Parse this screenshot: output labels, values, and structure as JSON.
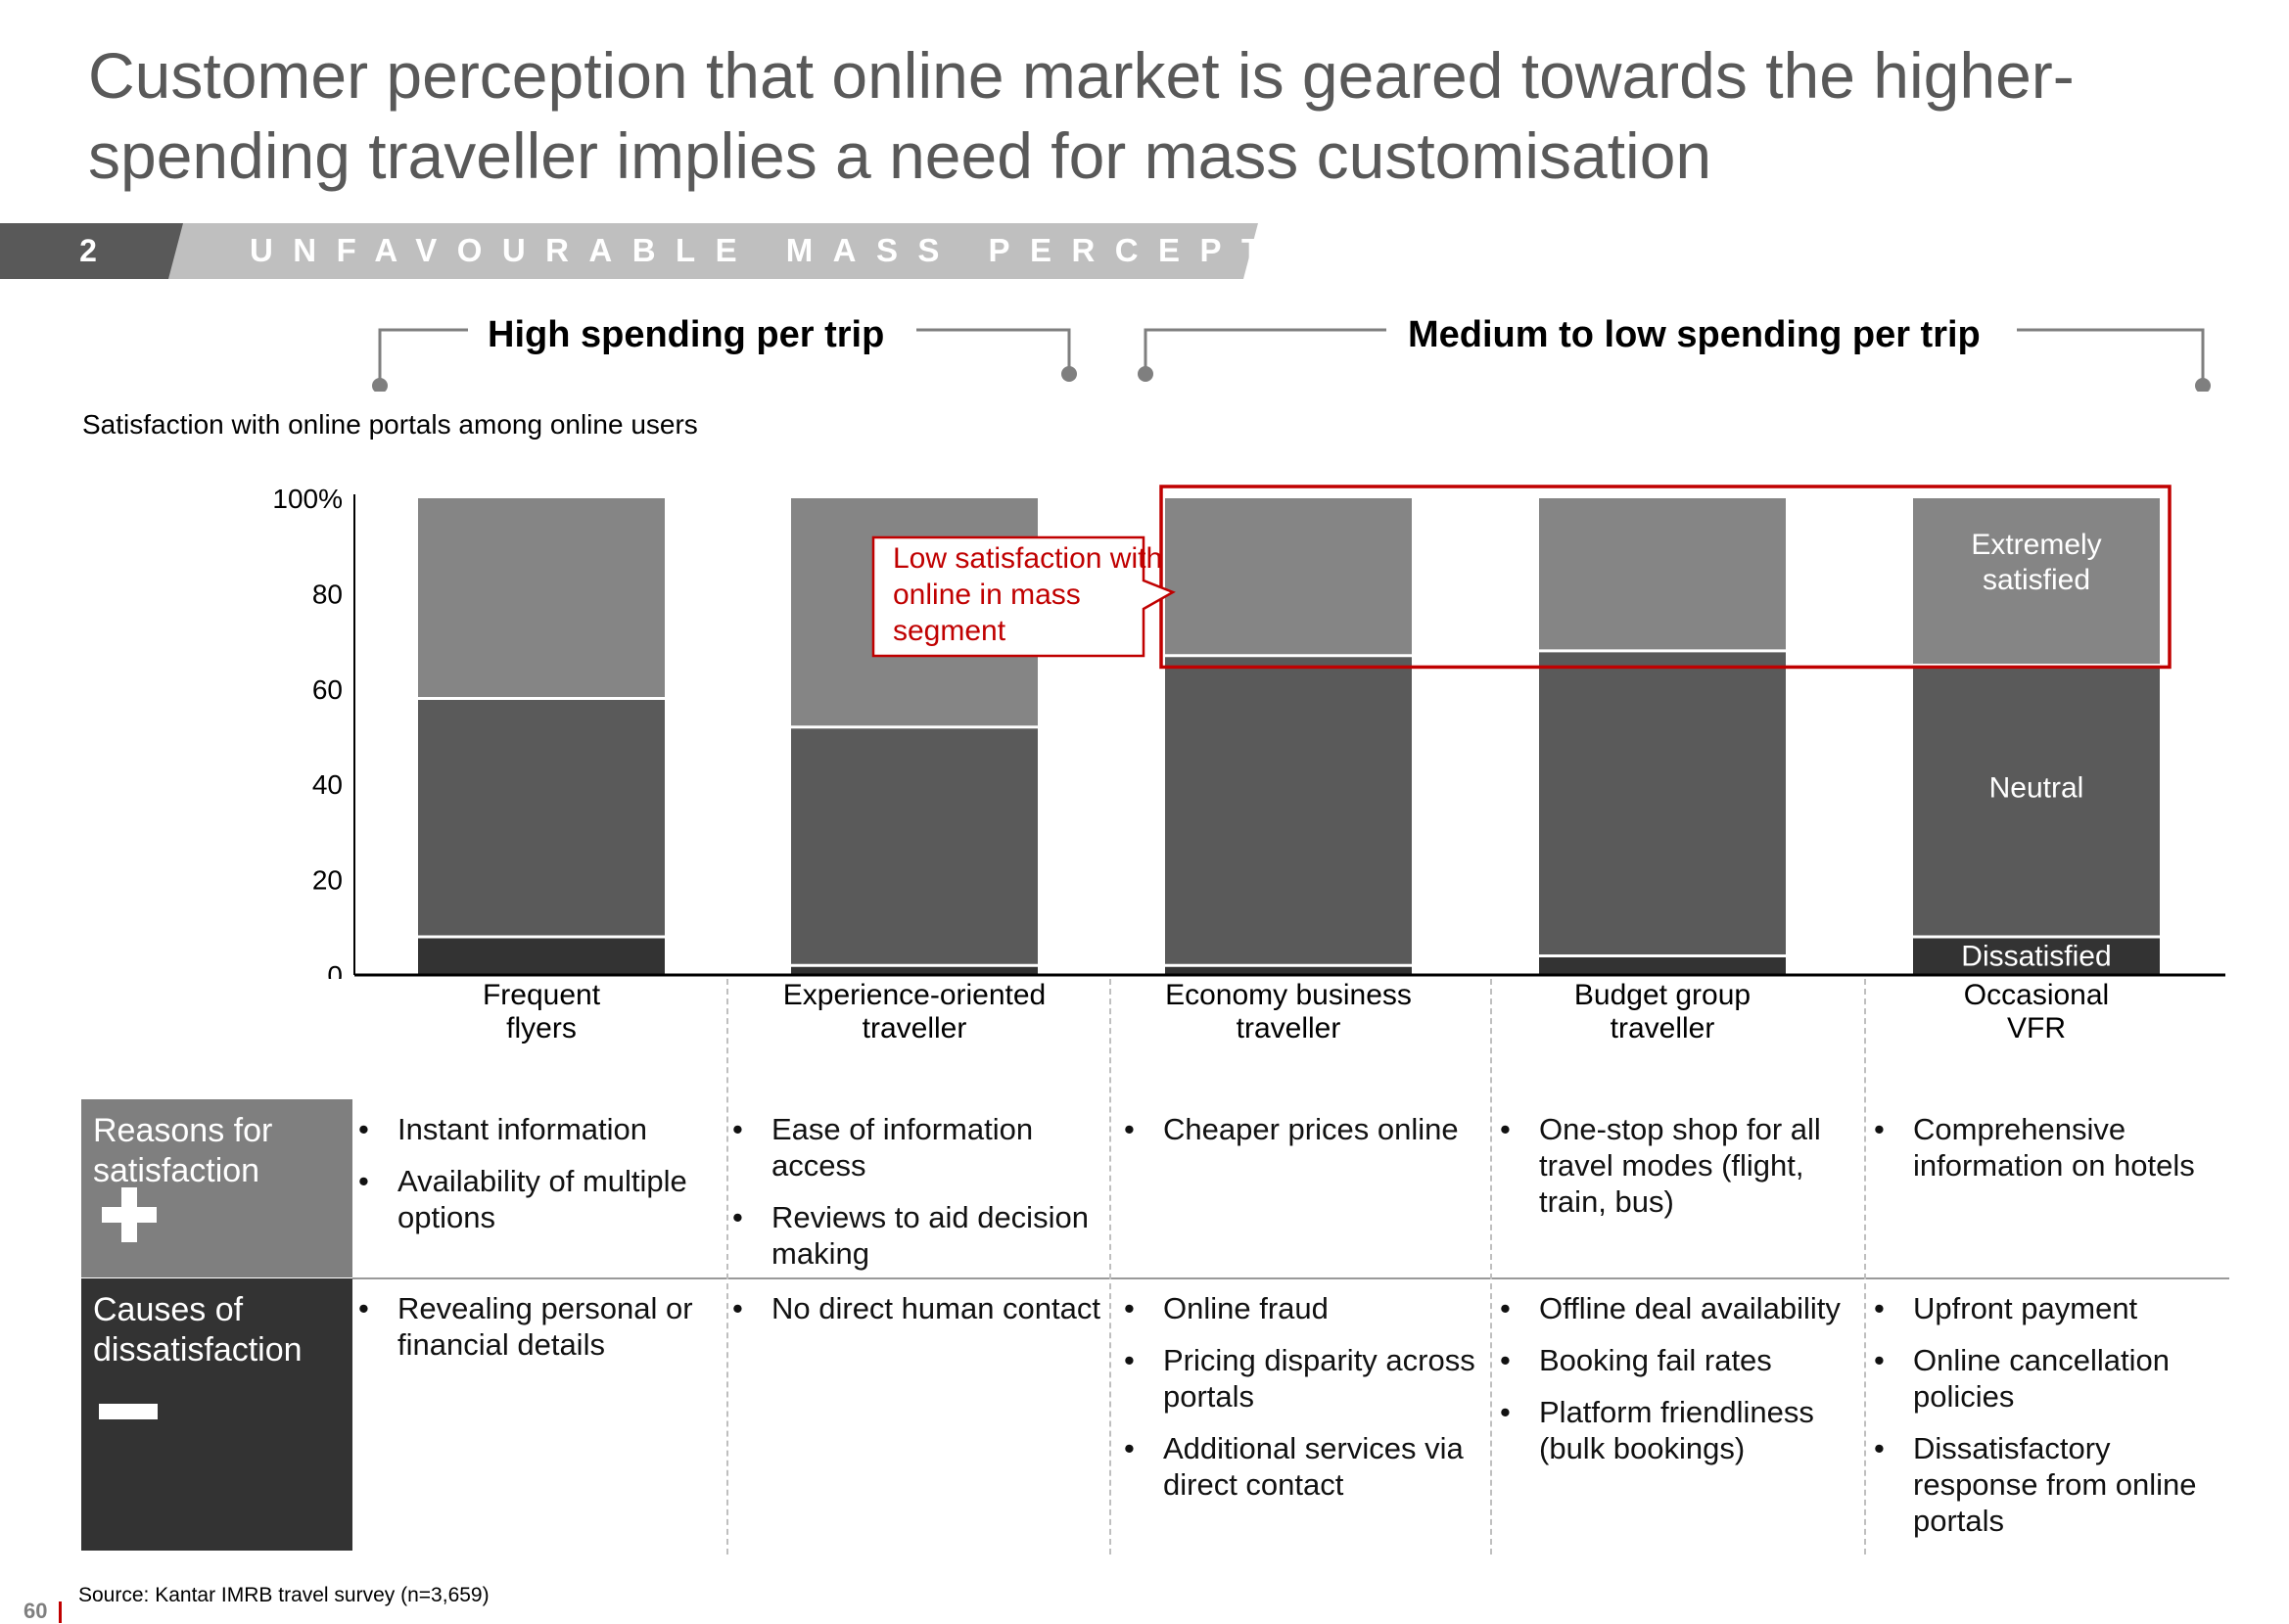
{
  "title": "Customer perception that online market is geared towards the  higher-spending traveller implies a need for mass customisation",
  "banner": {
    "number": "2",
    "text": "UNFAVOURABLE MASS PERCEPTION"
  },
  "segments": [
    {
      "label": "High spending per trip"
    },
    {
      "label": "Medium to low spending per trip"
    }
  ],
  "subtitle": "Satisfaction with online portals among online users",
  "callout": "Low satisfaction with online in mass segment",
  "colors": {
    "banner_dark": "#595959",
    "banner_light": "#bfbfbf",
    "dissatisfied": "#333333",
    "neutral": "#5a5a5a",
    "extremely_satisfied": "#858585",
    "highlight": "#c00000"
  },
  "chart_data": {
    "type": "bar",
    "stacked": true,
    "categories": [
      "Frequent flyers",
      "Experience-oriented traveller",
      "Economy business traveller",
      "Budget group traveller",
      "Occasional VFR"
    ],
    "category_lines": [
      [
        "Frequent",
        "flyers"
      ],
      [
        "Experience-oriented",
        "traveller"
      ],
      [
        "Economy business",
        "traveller"
      ],
      [
        "Budget group",
        "traveller"
      ],
      [
        "Occasional",
        "VFR"
      ]
    ],
    "series": [
      {
        "name": "Dissatisfied",
        "values": [
          8,
          2,
          2,
          4,
          8
        ]
      },
      {
        "name": "Neutral",
        "values": [
          50,
          50,
          65,
          64,
          57
        ]
      },
      {
        "name": "Extremely satisfied",
        "values": [
          42,
          48,
          33,
          32,
          35
        ]
      }
    ],
    "series_labels_on_category": 4,
    "series_label_lines": [
      [
        "Dissatisfied"
      ],
      [
        "Neutral"
      ],
      [
        "Extremely",
        "satisfied"
      ]
    ],
    "yticks": [
      "0",
      "20",
      "40",
      "60",
      "80",
      "100%"
    ],
    "ylim": [
      0,
      100
    ],
    "highlighted_categories": [
      2,
      3,
      4
    ]
  },
  "table": {
    "rows": [
      {
        "header": "Reasons for satisfaction",
        "cells": [
          [
            "Instant information",
            "Availability of multiple options"
          ],
          [
            "Ease of information access",
            "Reviews to aid decision making"
          ],
          [
            "Cheaper prices online"
          ],
          [
            "One-stop shop for all travel modes (flight, train, bus)"
          ],
          [
            "Comprehensive information on hotels"
          ]
        ]
      },
      {
        "header": "Causes of dissatisfaction",
        "cells": [
          [
            "Revealing personal or financial details"
          ],
          [
            "No direct human contact"
          ],
          [
            "Online fraud",
            "Pricing disparity across portals",
            "Additional services via direct contact"
          ],
          [
            "Offline deal availability",
            "Booking fail rates",
            "Platform friendliness (bulk bookings)"
          ],
          [
            "Upfront payment",
            "Online cancellation policies",
            "Dissatisfactory response from online portals"
          ]
        ]
      }
    ]
  },
  "source": "Source: Kantar IMRB travel survey (n=3,659)",
  "page_number": "60"
}
